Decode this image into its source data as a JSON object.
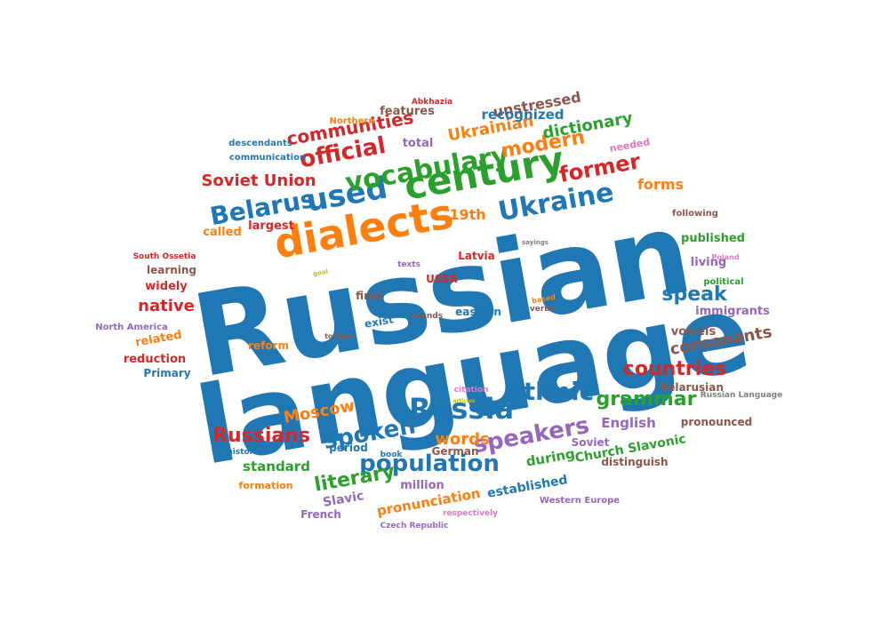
{
  "palette": {
    "blue": "#1f77b4",
    "orange": "#ff7f0e",
    "green": "#2ca02c",
    "red": "#d62728",
    "purple": "#9467bd",
    "brown": "#8c564b",
    "pink": "#e377c2",
    "gray": "#7f7f7f",
    "olive": "#bcbd22"
  },
  "words": [
    {
      "text": "Russian",
      "color": "blue"
    },
    {
      "text": "language",
      "color": "blue"
    },
    {
      "text": "dialects",
      "color": "orange"
    },
    {
      "text": "century",
      "color": "green"
    },
    {
      "text": "used",
      "color": "blue"
    },
    {
      "text": "vocabulary",
      "color": "green"
    },
    {
      "text": "Belarus",
      "color": "blue"
    },
    {
      "text": "Ukraine",
      "color": "blue"
    },
    {
      "text": "Russia",
      "color": "blue"
    },
    {
      "text": "ethnic",
      "color": "blue"
    },
    {
      "text": "spoken",
      "color": "blue"
    },
    {
      "text": "population",
      "color": "blue"
    },
    {
      "text": "speakers",
      "color": "purple"
    },
    {
      "text": "official",
      "color": "red"
    },
    {
      "text": "former",
      "color": "red"
    },
    {
      "text": "modern",
      "color": "orange"
    },
    {
      "text": "countries",
      "color": "red"
    },
    {
      "text": "Russians",
      "color": "red"
    },
    {
      "text": "literary",
      "color": "green"
    },
    {
      "text": "grammar",
      "color": "green"
    },
    {
      "text": "speak",
      "color": "blue"
    },
    {
      "text": "communities",
      "color": "red"
    },
    {
      "text": "Soviet Union",
      "color": "red"
    },
    {
      "text": "Ukrainian",
      "color": "orange"
    },
    {
      "text": "dictionary",
      "color": "green"
    },
    {
      "text": "consonants",
      "color": "brown"
    },
    {
      "text": "native",
      "color": "red"
    },
    {
      "text": "words",
      "color": "orange"
    },
    {
      "text": "Moscow",
      "color": "orange"
    },
    {
      "text": "forms",
      "color": "orange"
    },
    {
      "text": "19th",
      "color": "orange"
    },
    {
      "text": "unstressed",
      "color": "brown"
    },
    {
      "text": "recognized",
      "color": "blue"
    },
    {
      "text": "pronunciation",
      "color": "orange"
    },
    {
      "text": "standard",
      "color": "green"
    },
    {
      "text": "during",
      "color": "green"
    },
    {
      "text": "English",
      "color": "purple"
    },
    {
      "text": "Church Slavonic",
      "color": "green"
    },
    {
      "text": "established",
      "color": "blue"
    },
    {
      "text": "million",
      "color": "purple"
    },
    {
      "text": "Slavic",
      "color": "purple"
    },
    {
      "text": "widely",
      "color": "red"
    },
    {
      "text": "vowels",
      "color": "brown"
    },
    {
      "text": "features",
      "color": "brown"
    },
    {
      "text": "total",
      "color": "purple"
    },
    {
      "text": "called",
      "color": "orange"
    },
    {
      "text": "largest",
      "color": "red"
    },
    {
      "text": "published",
      "color": "green"
    },
    {
      "text": "living",
      "color": "purple"
    },
    {
      "text": "immigrants",
      "color": "purple"
    },
    {
      "text": "related",
      "color": "orange"
    },
    {
      "text": "reduction",
      "color": "red"
    },
    {
      "text": "Primary",
      "color": "blue"
    },
    {
      "text": "reform",
      "color": "orange"
    },
    {
      "text": "exist",
      "color": "blue"
    },
    {
      "text": "final",
      "color": "brown"
    },
    {
      "text": "eastern",
      "color": "blue"
    },
    {
      "text": "USSR",
      "color": "red"
    },
    {
      "text": "Latvia",
      "color": "red"
    },
    {
      "text": "learning",
      "color": "brown"
    },
    {
      "text": "period",
      "color": "blue"
    },
    {
      "text": "German",
      "color": "brown"
    },
    {
      "text": "French",
      "color": "purple"
    },
    {
      "text": "formation",
      "color": "orange"
    },
    {
      "text": "Soviet",
      "color": "purple"
    },
    {
      "text": "distinguish",
      "color": "brown"
    },
    {
      "text": "pronounced",
      "color": "brown"
    },
    {
      "text": "Belarusian",
      "color": "brown"
    },
    {
      "text": "needed",
      "color": "pink"
    },
    {
      "text": "following",
      "color": "brown"
    },
    {
      "text": "political",
      "color": "green"
    },
    {
      "text": "descendants",
      "color": "blue"
    },
    {
      "text": "communication",
      "color": "blue"
    },
    {
      "text": "Northern",
      "color": "orange"
    },
    {
      "text": "Abkhazia",
      "color": "red"
    },
    {
      "text": "South Ossetia",
      "color": "red"
    },
    {
      "text": "North America",
      "color": "purple"
    },
    {
      "text": "Western Europe",
      "color": "purple"
    },
    {
      "text": "Czech Republic",
      "color": "purple"
    },
    {
      "text": "respectively",
      "color": "pink"
    },
    {
      "text": "Russian Language",
      "color": "gray"
    },
    {
      "text": "historical",
      "color": "blue"
    },
    {
      "text": "book",
      "color": "blue"
    },
    {
      "text": "citation",
      "color": "pink"
    },
    {
      "text": "articles",
      "color": "olive"
    },
    {
      "text": "tongue",
      "color": "brown"
    },
    {
      "text": "sounds",
      "color": "brown"
    },
    {
      "text": "verbs",
      "color": "brown"
    },
    {
      "text": "based",
      "color": "orange"
    },
    {
      "text": "texts",
      "color": "purple"
    },
    {
      "text": "goal",
      "color": "olive"
    },
    {
      "text": "sayings",
      "color": "gray"
    },
    {
      "text": "Poland",
      "color": "pink"
    }
  ]
}
